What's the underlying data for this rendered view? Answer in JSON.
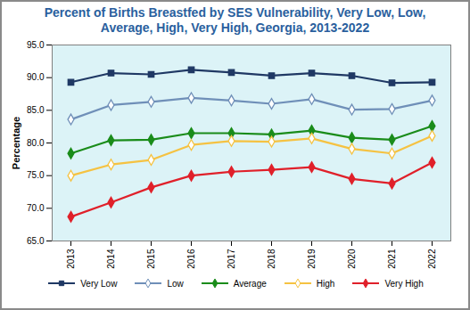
{
  "chart_data": {
    "type": "line",
    "title": "Percent of Births Breastfed by SES Vulnerability, Very Low, Low, Average, High, Very High, Georgia, 2013-2022",
    "y_label": "Percentage",
    "categories": [
      "2013",
      "2014",
      "2015",
      "2016",
      "2017",
      "2018",
      "2019",
      "2020",
      "2021",
      "2022"
    ],
    "series": [
      {
        "name": "Very Low",
        "color": "#1f3864",
        "marker": "square",
        "values": [
          89.3,
          90.7,
          90.5,
          91.2,
          90.8,
          90.3,
          90.7,
          90.3,
          89.2,
          89.3
        ]
      },
      {
        "name": "Low",
        "color": "#6f8fb8",
        "marker": "open-diamond",
        "values": [
          83.6,
          85.8,
          86.3,
          86.9,
          86.5,
          86.0,
          86.7,
          85.1,
          85.2,
          86.5
        ]
      },
      {
        "name": "Average",
        "color": "#1a8c1a",
        "marker": "diamond",
        "values": [
          78.4,
          80.4,
          80.5,
          81.5,
          81.5,
          81.3,
          81.9,
          80.8,
          80.5,
          82.6
        ]
      },
      {
        "name": "High",
        "color": "#f5c242",
        "marker": "open-diamond",
        "values": [
          75.0,
          76.7,
          77.4,
          79.7,
          80.3,
          80.2,
          80.7,
          79.1,
          78.4,
          81.1
        ]
      },
      {
        "name": "Very High",
        "color": "#e0202a",
        "marker": "diamond",
        "values": [
          68.7,
          70.9,
          73.2,
          75.0,
          75.6,
          75.9,
          76.3,
          74.5,
          73.8,
          77.0
        ]
      }
    ],
    "ylim": [
      65,
      95
    ],
    "yticks": [
      {
        "value": 65,
        "label": "65.0"
      },
      {
        "value": 70,
        "label": "70.0"
      },
      {
        "value": 75,
        "label": "75.0"
      },
      {
        "value": 80,
        "label": "80.0"
      },
      {
        "value": 85,
        "label": "85.0"
      },
      {
        "value": 90,
        "label": "90.0"
      },
      {
        "value": 95,
        "label": "95.0"
      }
    ],
    "grid": false,
    "legend": "bottom"
  }
}
